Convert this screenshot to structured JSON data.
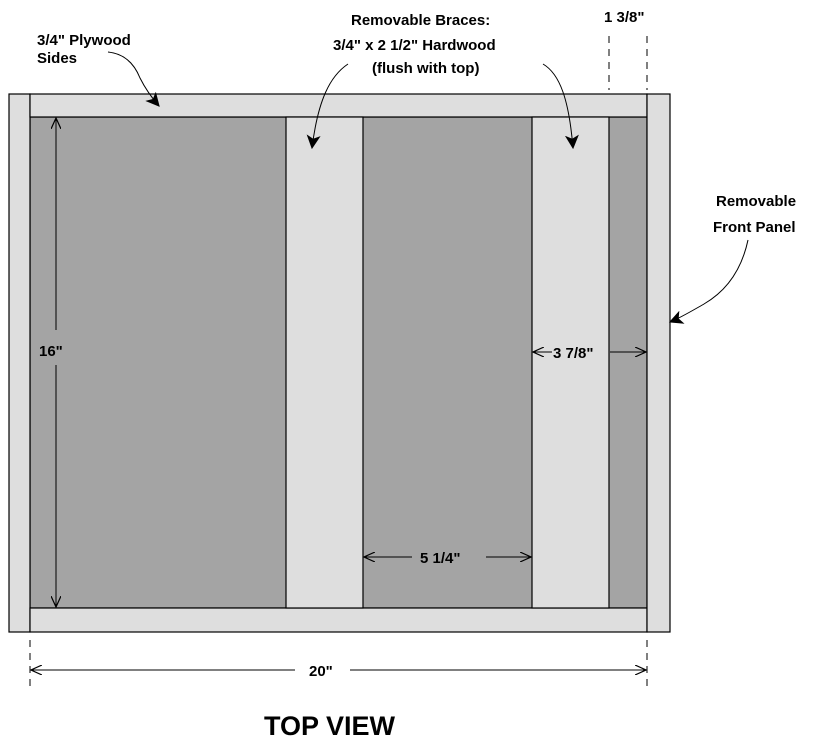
{
  "labels": {
    "plywood_sides_line1": "3/4\" Plywood",
    "plywood_sides_line2": "Sides",
    "braces_line1": "Removable Braces:",
    "braces_line2": "3/4\" x 2 1/2\" Hardwood",
    "braces_line3": "(flush with top)",
    "right_gap": "1 3/8\"",
    "front_panel_line1": "Removable",
    "front_panel_line2": "Front Panel",
    "height_dim": "16\"",
    "brace_gap_dim": "3 7/8\"",
    "brace_spacing_dim": "5 1/4\"",
    "width_dim": "20\"",
    "view_title": "TOP VIEW"
  },
  "colors": {
    "interior": "#a4a4a4",
    "wood": "#dedede",
    "outline": "#000000",
    "background": "#ffffff"
  }
}
